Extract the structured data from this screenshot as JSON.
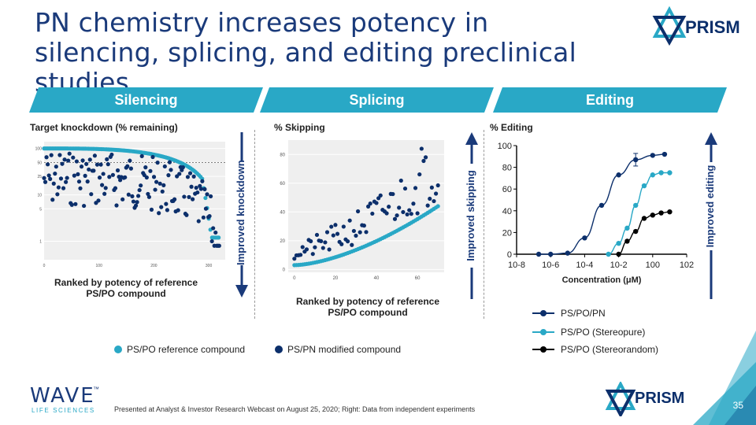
{
  "title": "PN chemistry increases potency in silencing, splicing, and editing preclinical studies",
  "brand": {
    "logo": "PRISM",
    "company": "WAVE",
    "company_sub": "LIFE SCIENCES",
    "trademark": "™"
  },
  "colors": {
    "navy": "#0c2f6b",
    "teal": "#29a8c6",
    "black": "#000000",
    "arrow": "#1a3a7a"
  },
  "banners": [
    "Silencing",
    "Splicing",
    "Editing"
  ],
  "axis_arrows": [
    "Improved knockdown",
    "Improved skipping",
    "Improved editing"
  ],
  "legend_left": {
    "reference": "PS/PO reference compound",
    "modified": "PS/PN modified compound"
  },
  "legend_right": [
    "PS/PO/PN",
    "PS/PO (Stereopure)",
    "PS/PO (Stereorandom)"
  ],
  "footer": "Presented at Analyst & Investor Research Webcast on August 25, 2020; Right: Data from independent experiments",
  "slide_number": "35",
  "chart_data": [
    {
      "type": "scatter",
      "title": "Target knockdown (% remaining)",
      "xlabel": "Ranked by potency of reference PS/PO compound",
      "ylabel": "Target knockdown (% remaining)",
      "yscale": "log",
      "xlim": [
        0,
        330
      ],
      "ylim": [
        0.4,
        140
      ],
      "xticks": [
        "0",
        "100",
        "200",
        "300"
      ],
      "yticks": [
        "100",
        "50",
        "25",
        "10",
        "5",
        "1"
      ],
      "reference_line": 50,
      "series": [
        {
          "name": "PS/PO reference compound",
          "color": "#29a8c6",
          "trend": "monotonic decrease from ~100 to ~1"
        },
        {
          "name": "PS/PN modified compound",
          "color": "#0c2f6b",
          "trend": "scattered below reference"
        }
      ]
    },
    {
      "type": "scatter",
      "title": "% Skipping",
      "xlabel": "Ranked by potency of reference PS/PO compound",
      "ylabel": "% Skipping",
      "xlim": [
        -3,
        73
      ],
      "ylim": [
        -2,
        90
      ],
      "xticks": [
        "0",
        "20",
        "40",
        "60"
      ],
      "yticks": [
        "0",
        "20",
        "40",
        "60",
        "80"
      ],
      "series": [
        {
          "name": "PS/PO reference compound",
          "color": "#29a8c6",
          "trend": "increasing from ~3 to ~44"
        },
        {
          "name": "PS/PN modified compound",
          "color": "#0c2f6b",
          "trend": "scattered above reference"
        }
      ]
    },
    {
      "type": "line",
      "title": "% Editing",
      "xlabel": "Concentration (μM)",
      "xscale": "log",
      "xlim": [
        -8,
        2
      ],
      "ylim": [
        0,
        100
      ],
      "xticks": [
        "10-8",
        "10-6",
        "10-4",
        "10-2",
        "100",
        "102"
      ],
      "yticks": [
        "0",
        "20",
        "40",
        "60",
        "80",
        "100"
      ],
      "series": [
        {
          "name": "PS/PO/PN",
          "color": "#0c2f6b",
          "logx": [
            -6.7,
            -6,
            -5,
            -4,
            -3,
            -2,
            -1,
            0,
            0.7
          ],
          "values": [
            0,
            0,
            1,
            15,
            45,
            73,
            87,
            91,
            92
          ]
        },
        {
          "name": "PS/PO (Stereopure)",
          "color": "#29a8c6",
          "logx": [
            -2.6,
            -2,
            -1.5,
            -1,
            -0.5,
            0,
            0.5,
            1
          ],
          "values": [
            0,
            10,
            24,
            45,
            63,
            73,
            75,
            75
          ]
        },
        {
          "name": "PS/PO (Stereorandom)",
          "color": "#000000",
          "logx": [
            -2,
            -1.5,
            -1,
            -0.5,
            0,
            0.5,
            1
          ],
          "values": [
            0,
            12,
            21,
            33,
            36,
            38,
            39
          ]
        }
      ]
    }
  ]
}
